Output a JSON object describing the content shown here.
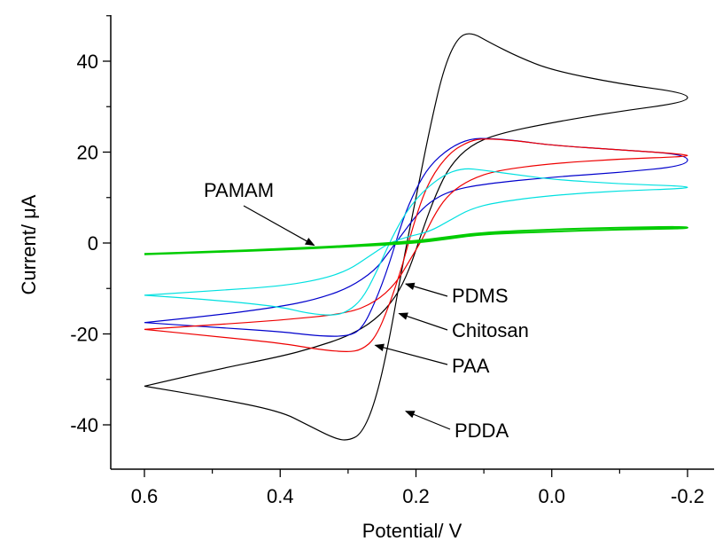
{
  "chart_data": {
    "type": "line",
    "title": "",
    "xlabel": "Potential/ V",
    "ylabel": "Current/ μA",
    "xlim": [
      0.6,
      -0.2
    ],
    "x_reversed": true,
    "ylim": [
      -50,
      48
    ],
    "x_ticks": [
      0.6,
      0.4,
      0.2,
      0.0,
      -0.2
    ],
    "x_tick_labels": [
      "0.6",
      "0.4",
      "0.2",
      "0.0",
      "-0.2"
    ],
    "y_ticks": [
      40,
      20,
      0,
      -20,
      -40
    ],
    "y_tick_labels": [
      "40",
      "20",
      "0",
      "-20",
      "-40"
    ],
    "grid": false,
    "legend": "none",
    "series": [
      {
        "name": "PDDA",
        "color": "#000000",
        "forward": [
          [
            0.6,
            -31.5
          ],
          [
            0.5,
            -28
          ],
          [
            0.4,
            -25
          ],
          [
            0.35,
            -23
          ],
          [
            0.3,
            -20.5
          ],
          [
            0.26,
            -17
          ],
          [
            0.23,
            -12
          ],
          [
            0.21,
            -6
          ],
          [
            0.19,
            3
          ],
          [
            0.17,
            11
          ],
          [
            0.15,
            17
          ],
          [
            0.12,
            21.5
          ],
          [
            0.08,
            24
          ],
          [
            0.0,
            26.5
          ],
          [
            -0.1,
            29
          ],
          [
            -0.2,
            31
          ]
        ],
        "reverse": [
          [
            -0.2,
            33
          ],
          [
            -0.1,
            35
          ],
          [
            0.0,
            38
          ],
          [
            0.05,
            41
          ],
          [
            0.09,
            44
          ],
          [
            0.12,
            46.5
          ],
          [
            0.14,
            45
          ],
          [
            0.16,
            38
          ],
          [
            0.18,
            25
          ],
          [
            0.2,
            10
          ],
          [
            0.22,
            -5
          ],
          [
            0.24,
            -22
          ],
          [
            0.26,
            -35
          ],
          [
            0.28,
            -42
          ],
          [
            0.3,
            -43.5
          ],
          [
            0.32,
            -43
          ],
          [
            0.36,
            -40
          ],
          [
            0.4,
            -37
          ],
          [
            0.5,
            -34
          ],
          [
            0.6,
            -31.5
          ]
        ]
      },
      {
        "name": "PDMS",
        "color": "#0000cc",
        "forward": [
          [
            0.6,
            -17.5
          ],
          [
            0.5,
            -16
          ],
          [
            0.4,
            -14
          ],
          [
            0.35,
            -12.5
          ],
          [
            0.3,
            -10
          ],
          [
            0.26,
            -6
          ],
          [
            0.24,
            -2
          ],
          [
            0.22,
            2
          ],
          [
            0.2,
            6
          ],
          [
            0.18,
            9
          ],
          [
            0.15,
            11.5
          ],
          [
            0.1,
            13
          ],
          [
            0.0,
            14.5
          ],
          [
            -0.1,
            15.5
          ],
          [
            -0.2,
            17
          ]
        ],
        "reverse": [
          [
            -0.2,
            19.5
          ],
          [
            -0.1,
            20.5
          ],
          [
            0.0,
            21.5
          ],
          [
            0.05,
            22.5
          ],
          [
            0.09,
            23
          ],
          [
            0.12,
            23
          ],
          [
            0.15,
            21
          ],
          [
            0.18,
            17
          ],
          [
            0.2,
            12
          ],
          [
            0.22,
            5
          ],
          [
            0.24,
            -5
          ],
          [
            0.26,
            -13
          ],
          [
            0.28,
            -19
          ],
          [
            0.3,
            -20.5
          ],
          [
            0.34,
            -20.5
          ],
          [
            0.4,
            -19.5
          ],
          [
            0.5,
            -18.5
          ],
          [
            0.6,
            -17.5
          ]
        ]
      },
      {
        "name": "Chitosan",
        "color": "#ee0000",
        "forward": [
          [
            0.6,
            -19
          ],
          [
            0.5,
            -18
          ],
          [
            0.4,
            -17
          ],
          [
            0.3,
            -15.5
          ],
          [
            0.26,
            -13
          ],
          [
            0.23,
            -9
          ],
          [
            0.21,
            -4
          ],
          [
            0.19,
            1
          ],
          [
            0.17,
            7
          ],
          [
            0.15,
            11
          ],
          [
            0.12,
            14
          ],
          [
            0.08,
            16
          ],
          [
            0.0,
            17.5
          ],
          [
            -0.1,
            18.5
          ],
          [
            -0.2,
            19
          ]
        ],
        "reverse": [
          [
            -0.2,
            19.5
          ],
          [
            -0.1,
            20.5
          ],
          [
            0.0,
            21.5
          ],
          [
            0.05,
            22.5
          ],
          [
            0.1,
            23
          ],
          [
            0.12,
            22.5
          ],
          [
            0.15,
            20
          ],
          [
            0.18,
            14
          ],
          [
            0.2,
            6
          ],
          [
            0.22,
            -5
          ],
          [
            0.24,
            -14
          ],
          [
            0.26,
            -21
          ],
          [
            0.28,
            -23.5
          ],
          [
            0.3,
            -24
          ],
          [
            0.34,
            -23.5
          ],
          [
            0.4,
            -22
          ],
          [
            0.5,
            -20.5
          ],
          [
            0.6,
            -19
          ]
        ]
      },
      {
        "name": "PAA",
        "color": "#00e0e0",
        "forward": [
          [
            0.6,
            -11.5
          ],
          [
            0.5,
            -10.5
          ],
          [
            0.4,
            -9.5
          ],
          [
            0.34,
            -8
          ],
          [
            0.3,
            -6
          ],
          [
            0.27,
            -3
          ],
          [
            0.24,
            0
          ],
          [
            0.21,
            1.5
          ],
          [
            0.18,
            2.5
          ],
          [
            0.15,
            5
          ],
          [
            0.12,
            7.5
          ],
          [
            0.08,
            9
          ],
          [
            0.0,
            10.5
          ],
          [
            -0.1,
            11.5
          ],
          [
            -0.2,
            12
          ]
        ],
        "reverse": [
          [
            -0.2,
            12.5
          ],
          [
            -0.1,
            13
          ],
          [
            0.0,
            14
          ],
          [
            0.05,
            15
          ],
          [
            0.1,
            16
          ],
          [
            0.13,
            16.5
          ],
          [
            0.16,
            15
          ],
          [
            0.2,
            10
          ],
          [
            0.23,
            3
          ],
          [
            0.26,
            -7
          ],
          [
            0.28,
            -12.5
          ],
          [
            0.3,
            -15
          ],
          [
            0.32,
            -16
          ],
          [
            0.36,
            -15.5
          ],
          [
            0.4,
            -14
          ],
          [
            0.5,
            -12.5
          ],
          [
            0.6,
            -11.5
          ]
        ]
      },
      {
        "name": "PAMAM",
        "color": "#00cc00",
        "forward": [
          [
            0.6,
            -2.5
          ],
          [
            0.5,
            -2
          ],
          [
            0.4,
            -1.5
          ],
          [
            0.3,
            -0.8
          ],
          [
            0.2,
            0
          ],
          [
            0.15,
            1
          ],
          [
            0.1,
            2
          ],
          [
            0.0,
            2.5
          ],
          [
            -0.1,
            3
          ],
          [
            -0.2,
            3.2
          ]
        ],
        "reverse": [
          [
            -0.2,
            3.6
          ],
          [
            -0.1,
            3.4
          ],
          [
            0.0,
            3
          ],
          [
            0.1,
            2.3
          ],
          [
            0.15,
            1.4
          ],
          [
            0.2,
            0.4
          ],
          [
            0.3,
            -0.6
          ],
          [
            0.4,
            -1.3
          ],
          [
            0.5,
            -1.9
          ],
          [
            0.6,
            -2.4
          ]
        ]
      }
    ],
    "annotations": [
      {
        "text": "PAMAM",
        "arrow_tip": [
          0.35,
          -0.5
        ]
      },
      {
        "text": "PDMS",
        "arrow_tip": [
          0.215,
          -9
        ]
      },
      {
        "text": "Chitosan",
        "arrow_tip": [
          0.225,
          -15.5
        ]
      },
      {
        "text": "PAA",
        "arrow_tip": [
          0.26,
          -22.5
        ]
      },
      {
        "text": "PDDA",
        "arrow_tip": [
          0.215,
          -37
        ]
      }
    ]
  }
}
